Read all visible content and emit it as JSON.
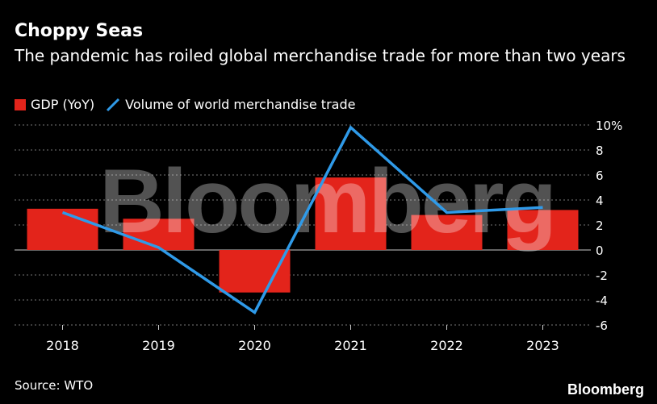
{
  "header": {
    "title": "Choppy Seas",
    "subtitle": "The pandemic has roiled global merchandise trade for more than two years"
  },
  "legend": {
    "gdp_label": "GDP (YoY)",
    "trade_label": "Volume of world merchandise trade"
  },
  "footer": {
    "source": "Source: WTO",
    "brand": "Bloomberg"
  },
  "watermark": "Bloomberg",
  "colors": {
    "bar": "#e3241b",
    "line": "#2f9ae8",
    "background": "#000000",
    "grid": "#777777",
    "text": "#ffffff"
  },
  "chart_data": {
    "type": "bar+line",
    "title": "Choppy Seas",
    "categories": [
      "2018",
      "2019",
      "2020",
      "2021",
      "2022",
      "2023"
    ],
    "series": [
      {
        "name": "GDP (YoY)",
        "kind": "bar",
        "values": [
          3.3,
          2.5,
          -3.4,
          5.8,
          2.8,
          3.2
        ]
      },
      {
        "name": "Volume of world merchandise trade",
        "kind": "line",
        "values": [
          3.0,
          0.2,
          -5.0,
          9.8,
          3.0,
          3.4
        ]
      }
    ],
    "ylim": [
      -6,
      10
    ],
    "yticks": [
      10,
      8,
      6,
      4,
      2,
      0,
      -2,
      -4,
      -6
    ],
    "ytick_labels": [
      "10%",
      "8",
      "6",
      "4",
      "2",
      "0",
      "-2",
      "-4",
      "-6"
    ],
    "y_axis_side": "right",
    "grid": true
  }
}
